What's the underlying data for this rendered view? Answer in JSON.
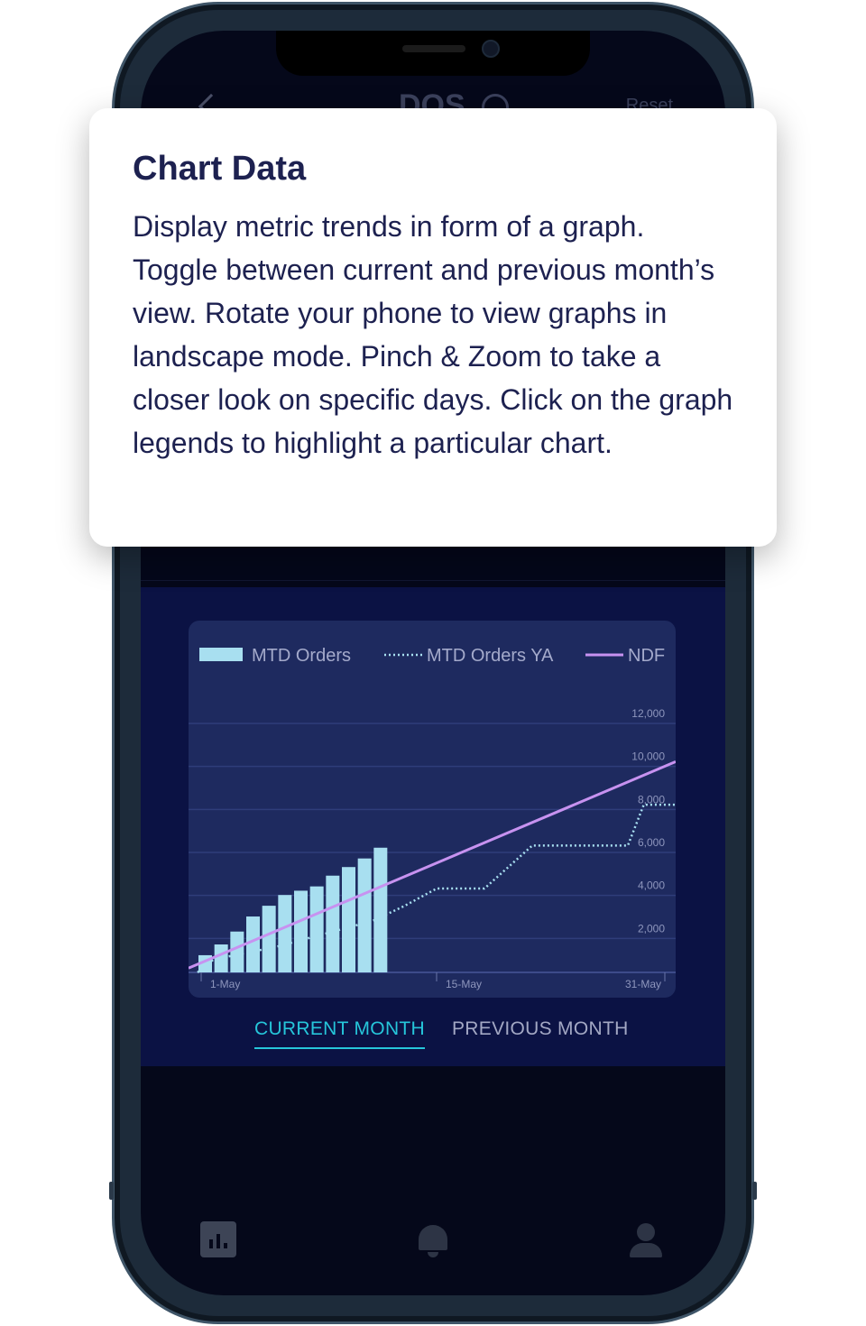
{
  "app": {
    "title": "DOS",
    "reset_label": "Reset"
  },
  "tooltip": {
    "title": "Chart Data",
    "body": "Display metric trends in form of a graph. Toggle between current and previous month’s view. Rotate your phone to view graphs in landscape mode. Pinch & Zoom to take a closer look on specific days. Click on the graph legends to highlight a particular chart."
  },
  "tabs": {
    "current": "CURRENT MONTH",
    "previous": "PREVIOUS MONTH",
    "active": "current"
  },
  "colors": {
    "bar": "#a8dff0",
    "ya_line": "#a8dff0",
    "ndf_line": "#c792f0",
    "accent": "#26c6da"
  },
  "chart_data": {
    "type": "bar",
    "legend": [
      "MTD Orders",
      "MTD Orders YA",
      "NDF"
    ],
    "legend_position": "top",
    "grid": true,
    "y_axis_side": "right",
    "y_ticks": [
      "2,000",
      "4,000",
      "6,000",
      "8,000",
      "10,000",
      "12,000"
    ],
    "ylim": [
      0,
      12000
    ],
    "x_ticks": [
      "1-May",
      "15-May",
      "31-May"
    ],
    "xlim": [
      1,
      31
    ],
    "series": [
      {
        "name": "MTD Orders",
        "type": "bar",
        "x": [
          1,
          2,
          3,
          4,
          5,
          6,
          7,
          8,
          9,
          10,
          11,
          12
        ],
        "values": [
          800,
          1300,
          1900,
          2600,
          3100,
          3600,
          3800,
          4000,
          4500,
          4900,
          5300,
          5800
        ]
      },
      {
        "name": "MTD Orders YA",
        "type": "line",
        "style": "dotted",
        "x": [
          1,
          2,
          4,
          6,
          8,
          10,
          12,
          14,
          16,
          19,
          22,
          25,
          28,
          29,
          30,
          31
        ],
        "values": [
          0,
          600,
          900,
          1200,
          1600,
          2000,
          2400,
          3100,
          3900,
          3900,
          5900,
          5900,
          5900,
          7800,
          7800,
          7800
        ]
      },
      {
        "name": "NDF",
        "type": "line",
        "style": "solid",
        "x": [
          1,
          31
        ],
        "values": [
          200,
          9800
        ]
      }
    ]
  }
}
